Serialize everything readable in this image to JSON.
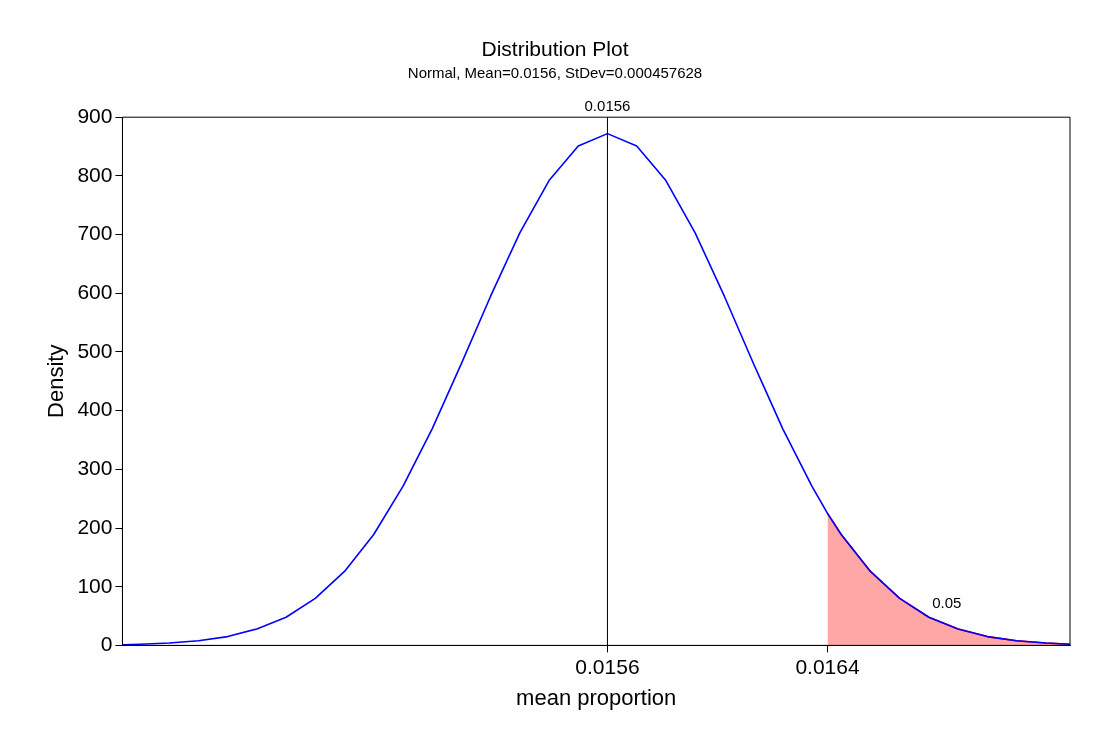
{
  "chart_data": {
    "type": "line",
    "title": "Distribution Plot",
    "subtitle": "Normal, Mean=0.0156, StDev=0.000457628",
    "xlabel": "mean proportion",
    "ylabel": "Density",
    "xlim": [
      0.01394,
      0.017183
    ],
    "xticks": [
      0.0156,
      {
        "value": 0.016353,
        "label": "0.0164"
      }
    ],
    "ylim": [
      0,
      900
    ],
    "yticks": [
      0,
      100,
      200,
      300,
      400,
      500,
      600,
      700,
      800,
      900
    ],
    "grid": false,
    "legend": false,
    "marker": "none",
    "line_style": "solid",
    "series": [
      {
        "color": "#0000ff",
        "x": [
          0.01394,
          0.014,
          0.0141,
          0.0142,
          0.0143,
          0.0144,
          0.0145,
          0.0146,
          0.0147,
          0.0148,
          0.0149,
          0.015,
          0.0151,
          0.0152,
          0.0153,
          0.0154,
          0.0155,
          0.0156,
          0.0157,
          0.0158,
          0.0159,
          0.016,
          0.0161,
          0.0162,
          0.0163,
          0.016353,
          0.0164,
          0.0165,
          0.0166,
          0.0167,
          0.0168,
          0.0169,
          0.017,
          0.0171,
          0.017183
        ],
        "values": [
          1,
          2,
          4,
          8,
          15,
          28,
          48,
          80,
          126,
          189,
          271,
          369,
          480,
          595,
          703,
          792,
          851,
          872,
          851,
          792,
          703,
          595,
          480,
          369,
          271,
          225,
          189,
          126,
          80,
          48,
          28,
          15,
          8,
          4,
          2
        ]
      },
      {
        "type": "area",
        "color": "#ff0000",
        "x": [
          0.016353,
          0.0164,
          0.0165,
          0.0166,
          0.0167,
          0.0168,
          0.0169,
          0.017,
          0.0171,
          0.017183
        ],
        "values": [
          225,
          189,
          126,
          80,
          48,
          28,
          15,
          8,
          4,
          2
        ]
      }
    ],
    "ref_lines": [
      {
        "axis": "x",
        "value": 0.0156,
        "label": "0.0156",
        "color": "#000000"
      }
    ],
    "annotations": [
      "0.05"
    ]
  }
}
